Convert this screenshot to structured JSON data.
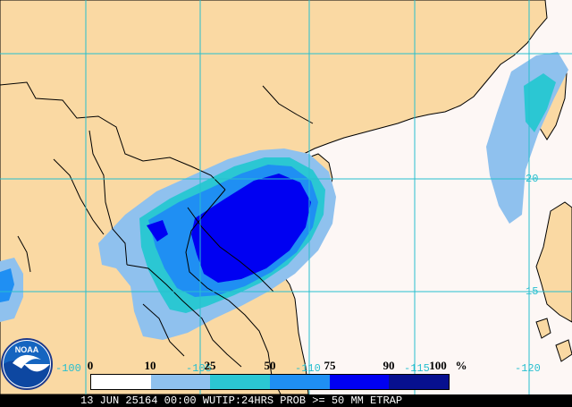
{
  "legend": {
    "ticks": [
      "0",
      "10",
      "25",
      "50",
      "75",
      "90",
      "100"
    ],
    "unit": "%",
    "colors": [
      "#ffffff",
      "#8fc1ee",
      "#2bc7d3",
      "#1f8ff3",
      "#0000f2",
      "#07108f"
    ]
  },
  "grid_labels": {
    "lon": [
      "-100",
      "-105",
      "-110",
      "-115",
      "-120"
    ],
    "lat": [
      "20",
      "15"
    ]
  },
  "caption": "13 JUN 25164 00:00 WUTIP:24HRS PROB >= 50 MM ETRAP",
  "logo_text": "NOAA",
  "colors": {
    "land": "#fad9a3",
    "ocean": "#fdf7f5",
    "grid": "#27bfcf",
    "border": "#000000"
  }
}
